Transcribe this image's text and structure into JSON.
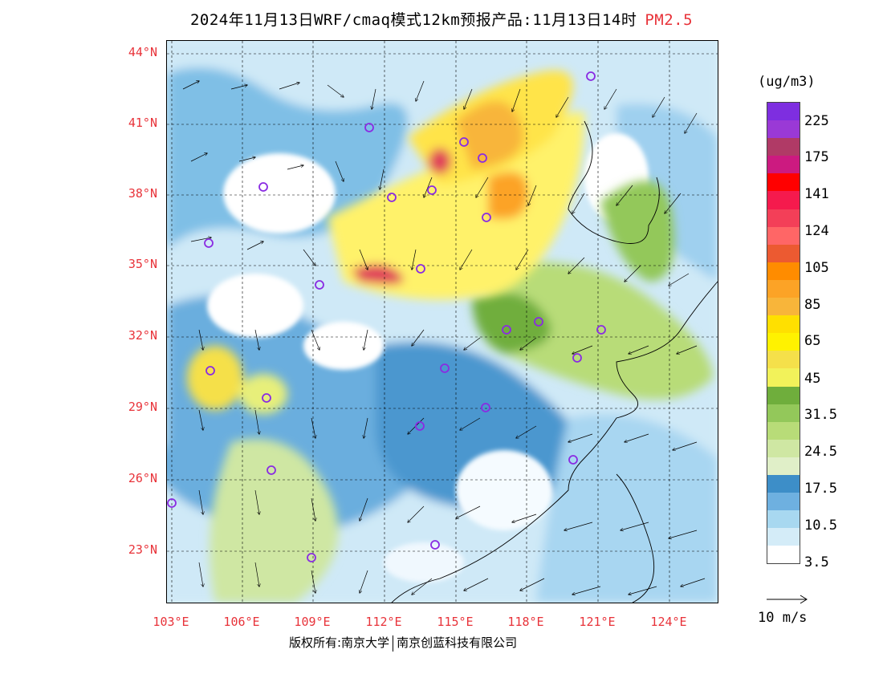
{
  "title": {
    "main": "2024年11月13日WRF/cmaq模式12km预报产品:11月13日14时",
    "pollutant": "PM2.5",
    "pollutant_color": "#e8333a"
  },
  "axes": {
    "latitudes": [
      "44°N",
      "41°N",
      "38°N",
      "35°N",
      "32°N",
      "29°N",
      "26°N",
      "23°N"
    ],
    "longitudes": [
      "103°E",
      "106°E",
      "109°E",
      "112°E",
      "115°E",
      "118°E",
      "121°E",
      "124°E"
    ],
    "label_color": "#e8333a"
  },
  "legend": {
    "unit": "(ug/m3)",
    "colors": [
      "#7e2ee0",
      "#9a39d6",
      "#b03a66",
      "#cc1a80",
      "#ff0000",
      "#f51a4d",
      "#f33f58",
      "#ff6666",
      "#ec5a31",
      "#ff8c00",
      "#fca326",
      "#f8b53a",
      "#ffe000",
      "#fff200",
      "#f5e04a",
      "#f2f25a",
      "#6fae3c",
      "#93c85a",
      "#b8dc78",
      "#cfe7a3",
      "#e0efc8",
      "#3d8ec8",
      "#6eb0e0",
      "#a8d8f0",
      "#d4ecf8",
      "#ffffff"
    ],
    "labels": [
      "225",
      "175",
      "141",
      "124",
      "105",
      "85",
      "65",
      "45",
      "31.5",
      "24.5",
      "17.5",
      "10.5",
      "3.5"
    ]
  },
  "wind_reference": "10 m/s",
  "footer": {
    "copyright": "版权所有:南京大学",
    "company": "南京创蓝科技有限公司"
  }
}
